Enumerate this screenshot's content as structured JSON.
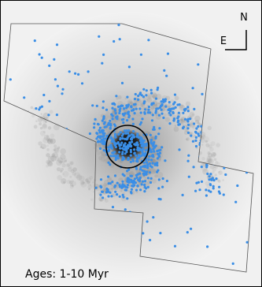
{
  "compass": {
    "north": "N",
    "east": "E"
  },
  "label": "Ages: 1-10 Myr"
}
